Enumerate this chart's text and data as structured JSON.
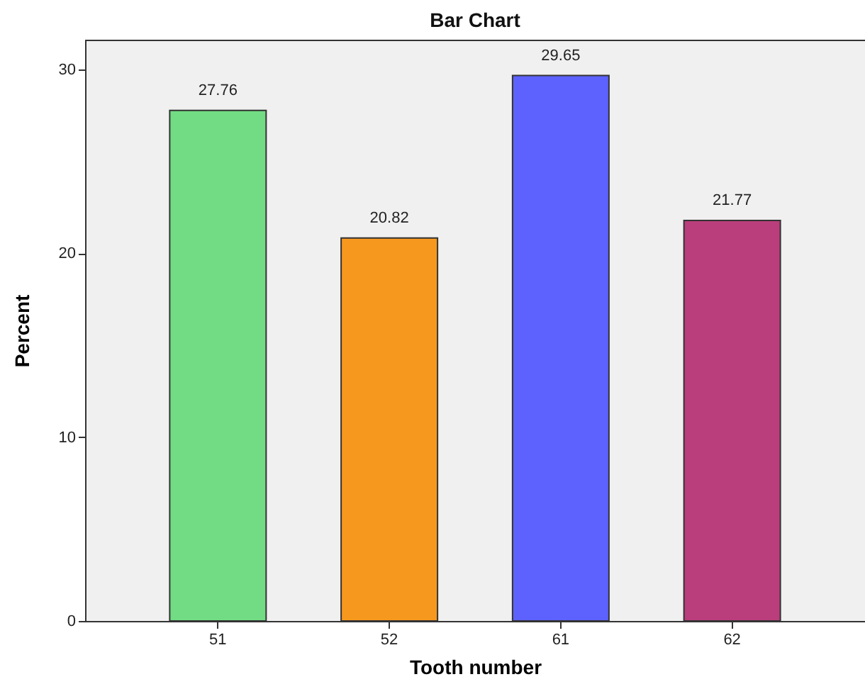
{
  "chart_data": {
    "type": "bar",
    "title": "Bar Chart",
    "xlabel": "Tooth number",
    "ylabel": "Percent",
    "categories": [
      "51",
      "52",
      "61",
      "62"
    ],
    "values": [
      27.76,
      20.82,
      29.65,
      21.77
    ],
    "colors": [
      "#72dc84",
      "#f7981e",
      "#5d62fe",
      "#b93e7b"
    ],
    "ylim": [
      0,
      31.6
    ],
    "yticks": [
      0,
      10,
      20,
      30
    ],
    "grid": false,
    "data_labels": true
  }
}
